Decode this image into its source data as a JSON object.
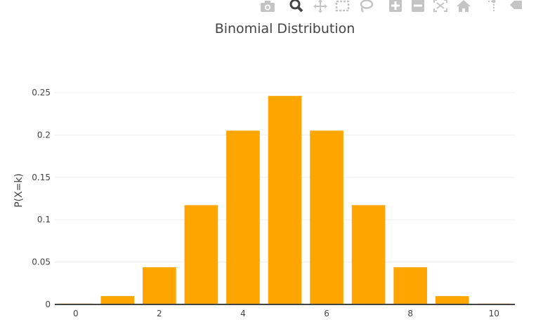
{
  "modebar": {
    "buttons": [
      {
        "icon": "camera-icon"
      },
      {
        "icon": "zoom-icon"
      },
      {
        "icon": "pan-icon"
      },
      {
        "icon": "box-select-icon"
      },
      {
        "icon": "lasso-select-icon"
      },
      {
        "icon": "zoom-in-icon"
      },
      {
        "icon": "zoom-out-icon"
      },
      {
        "icon": "autoscale-icon"
      },
      {
        "icon": "reset-axes-icon"
      },
      {
        "icon": "spike-lines-icon"
      },
      {
        "icon": "hover-closest-icon"
      }
    ],
    "active_color": "#444444",
    "inactive_color": "#c4c4c4"
  },
  "chart_data": {
    "type": "bar",
    "title": "Binomial Distribution",
    "xlabel": "",
    "ylabel": "P(X=k)",
    "x": [
      0,
      1,
      2,
      3,
      4,
      5,
      6,
      7,
      8,
      9,
      10
    ],
    "values": [
      0.001,
      0.0098,
      0.0439,
      0.1172,
      0.2051,
      0.2461,
      0.2051,
      0.1172,
      0.0439,
      0.0098,
      0.001
    ],
    "bar_color": "#ffa500",
    "xticks": [
      0,
      2,
      4,
      6,
      8,
      10
    ],
    "yticks": [
      0,
      0.05,
      0.1,
      0.15,
      0.2,
      0.25
    ],
    "ytick_labels": [
      "0",
      "0.05",
      "0.1",
      "0.15",
      "0.2",
      "0.25"
    ],
    "xlim": [
      -0.5,
      10.5
    ],
    "ylim": [
      0,
      0.2591
    ],
    "grid": true,
    "legend": "none"
  }
}
